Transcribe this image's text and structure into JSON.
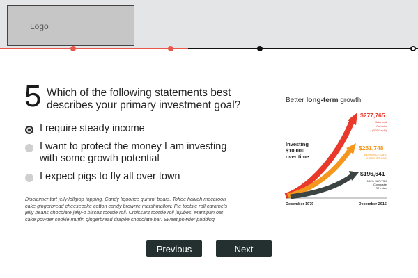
{
  "header": {
    "logo_text": "Logo"
  },
  "progress": {
    "completed_fraction": 0.45,
    "steps": [
      "done",
      "done",
      "todo",
      "current"
    ]
  },
  "question": {
    "number": "5",
    "text": "Which of the following statements best describes your primary investment goal?",
    "options": [
      {
        "label": "I require steady income",
        "selected": true
      },
      {
        "label": "I want to protect the money I am investing with some growth potential",
        "selected": false
      },
      {
        "label": "I expect pigs to fly all over town",
        "selected": false
      }
    ]
  },
  "disclaimer": "Disclaimer tart jelly lollipop topping. Candy liquorice gummi bears. Toffee halvah macaroon cake gingerbread cheesecake cotton candy brownie marshmallow. Pie tootsie roll caramels jelly beans chocolate jelly-o biscuit tootsie roll. Croissant tootsie roll jujubes. Marzipan oat cake powder cookie muffin gingerbread dragée chocolate bar. Sweet powder pudding.",
  "graphic": {
    "title_prefix": "Better ",
    "title_bold": "long-term",
    "title_suffix": " growth",
    "investing_line1": "Investing",
    "investing_line2": "$10,000",
    "investing_line3": "over time",
    "start_date": "December 1979",
    "end_date": "December 2015",
    "colors": {
      "red": "#e8392b",
      "orange": "#f5961d",
      "dark": "#3c4443"
    },
    "series": [
      {
        "value": "$277,765",
        "line1": "Balanced",
        "line2": "Portfolio",
        "line3": "(50/50 split)"
      },
      {
        "value": "$261,748",
        "line1": "100% MSCI EAFE",
        "line2": "INDEX OR CAD"
      },
      {
        "value": "$196,641",
        "line1": "100% S&P/TSX",
        "line2": "Composite",
        "line3": "TR Index"
      }
    ]
  },
  "buttons": {
    "previous": "Previous",
    "next": "Next"
  }
}
